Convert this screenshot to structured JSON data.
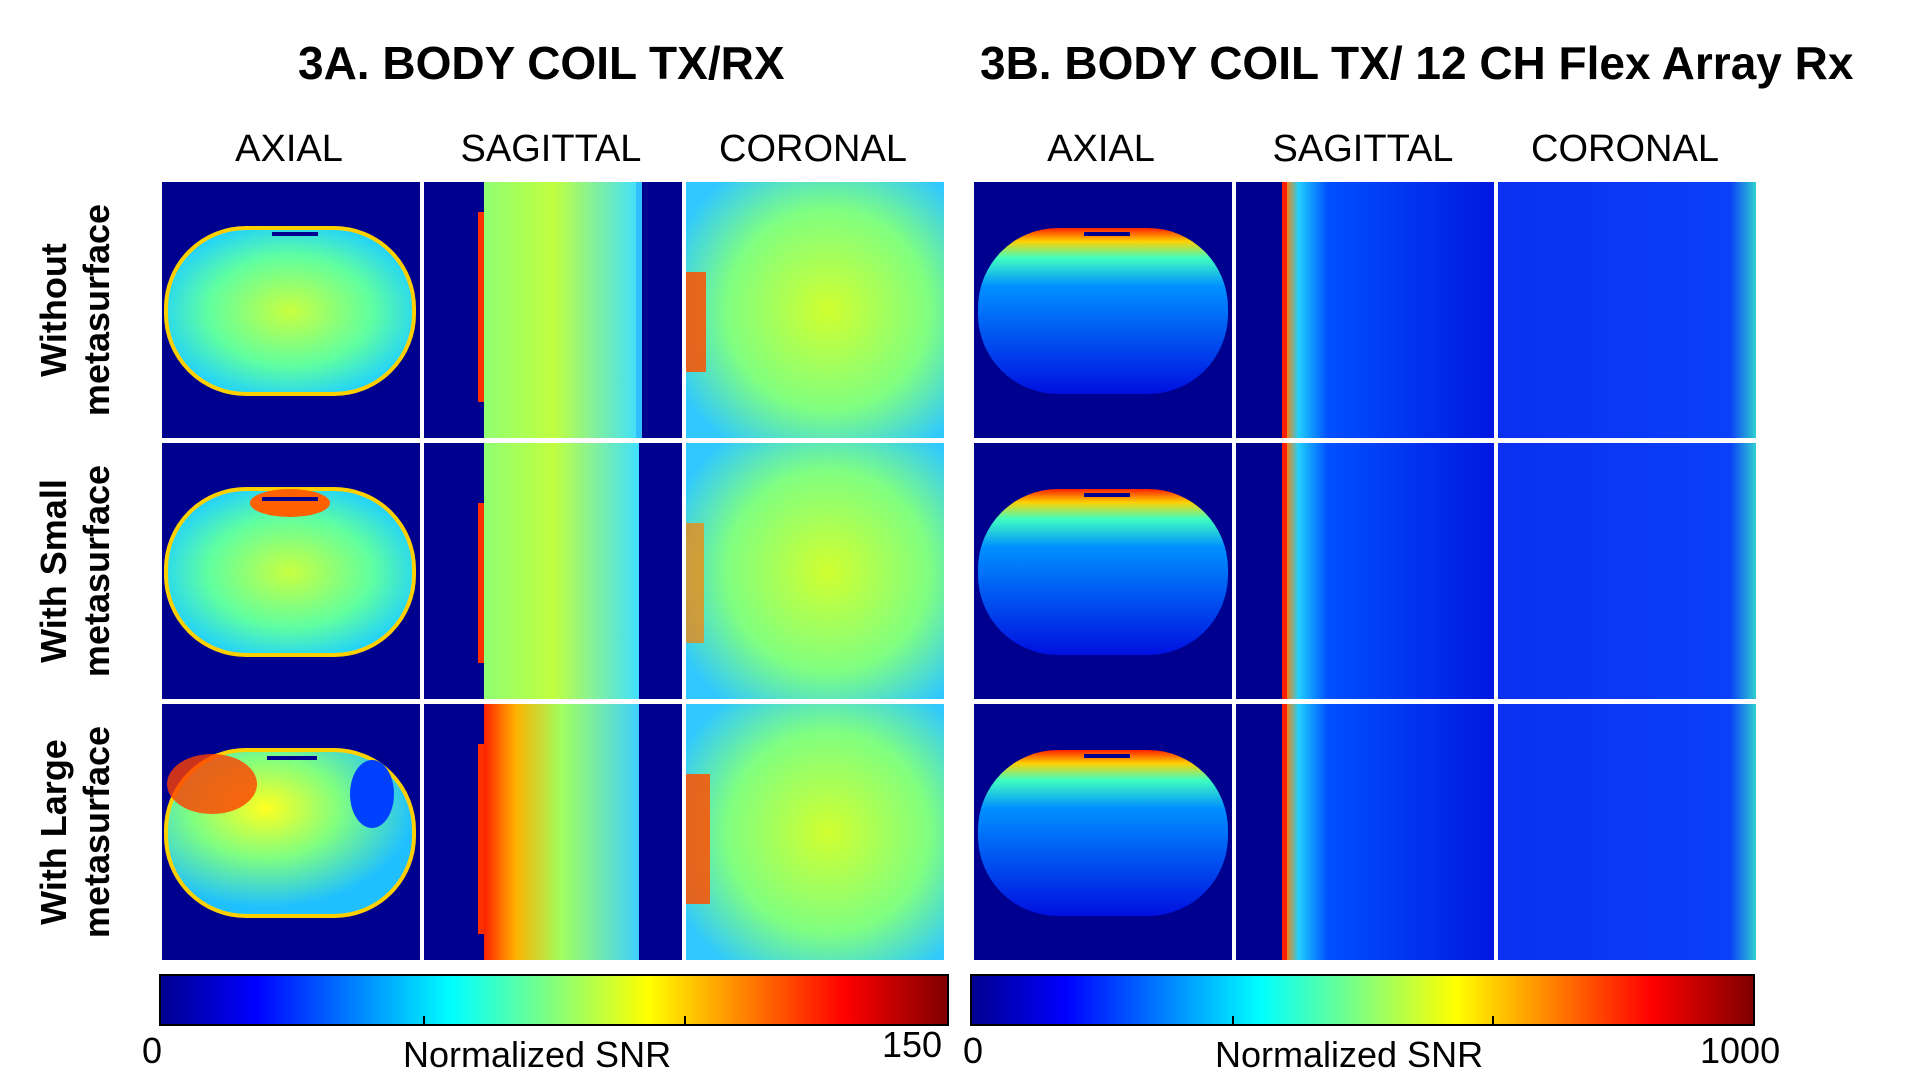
{
  "figure": {
    "panel_a": {
      "title": "3A. BODY COIL TX/RX",
      "columns": [
        "AXIAL",
        "SAGITTAL",
        "CORONAL"
      ],
      "colorbar": {
        "label": "Normalized SNR",
        "min": "0",
        "max": "150"
      }
    },
    "panel_b": {
      "title": "3B. BODY COIL TX/ 12 CH Flex Array Rx",
      "columns": [
        "AXIAL",
        "SAGITTAL",
        "CORONAL"
      ],
      "colorbar": {
        "label": "Normalized SNR",
        "min": "0",
        "max": "1000"
      }
    },
    "rows": [
      {
        "line1": "Without",
        "line2": "metasurface"
      },
      {
        "line1": "With Small",
        "line2": "metasurface"
      },
      {
        "line1": "With Large",
        "line2": "metasurface"
      }
    ],
    "colormap": "jet",
    "colormap_stops": [
      "#00008f",
      "#0000ff",
      "#00ffff",
      "#ffff00",
      "#ff0000",
      "#800000"
    ]
  }
}
